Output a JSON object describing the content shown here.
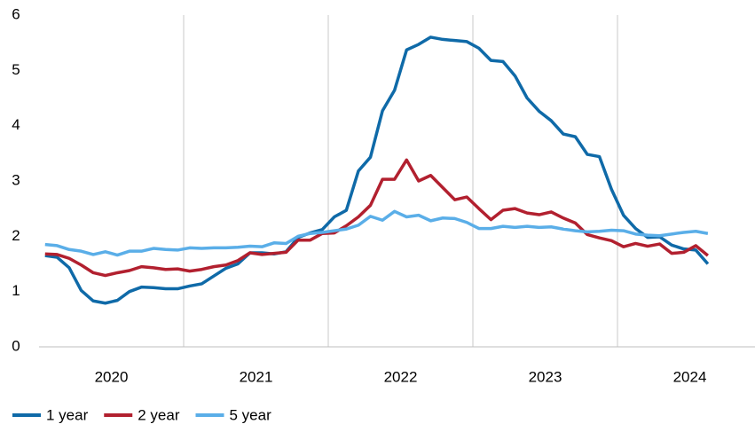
{
  "chart_data": {
    "type": "line",
    "categories": [
      null,
      null,
      null,
      null,
      null,
      null,
      "2020",
      null,
      null,
      null,
      null,
      null,
      null,
      null,
      null,
      null,
      null,
      null,
      "2021",
      null,
      null,
      null,
      null,
      null,
      null,
      null,
      null,
      null,
      null,
      null,
      "2022",
      null,
      null,
      null,
      null,
      null,
      null,
      null,
      null,
      null,
      null,
      null,
      "2023",
      null,
      null,
      null,
      null,
      null,
      null,
      null,
      null,
      null,
      null,
      null,
      "2024",
      null
    ],
    "series": [
      {
        "name": "1 year",
        "color": "#0f6aa8",
        "values": [
          1.65,
          1.62,
          1.43,
          1.02,
          0.83,
          0.79,
          0.84,
          1.0,
          1.08,
          1.07,
          1.05,
          1.05,
          1.1,
          1.14,
          1.28,
          1.42,
          1.5,
          1.7,
          1.7,
          1.68,
          1.72,
          1.98,
          2.06,
          2.12,
          2.35,
          2.47,
          3.18,
          3.43,
          4.27,
          4.64,
          5.37,
          5.47,
          5.6,
          5.56,
          5.54,
          5.52,
          5.4,
          5.18,
          5.16,
          4.9,
          4.5,
          4.26,
          4.09,
          3.85,
          3.8,
          3.48,
          3.44,
          2.85,
          2.38,
          2.14,
          1.98,
          1.99,
          1.84,
          1.77,
          1.75,
          1.5
        ]
      },
      {
        "name": "2 year",
        "color": "#b2202f",
        "values": [
          1.68,
          1.67,
          1.6,
          1.48,
          1.34,
          1.29,
          1.34,
          1.38,
          1.45,
          1.43,
          1.4,
          1.41,
          1.37,
          1.4,
          1.45,
          1.48,
          1.56,
          1.7,
          1.67,
          1.69,
          1.71,
          1.93,
          1.93,
          2.05,
          2.06,
          2.19,
          2.35,
          2.56,
          3.03,
          3.03,
          3.38,
          3.0,
          3.1,
          2.88,
          2.66,
          2.71,
          2.5,
          2.3,
          2.47,
          2.5,
          2.42,
          2.39,
          2.44,
          2.33,
          2.24,
          2.03,
          1.97,
          1.92,
          1.81,
          1.87,
          1.82,
          1.86,
          1.69,
          1.71,
          1.83,
          1.65
        ]
      },
      {
        "name": "5 year",
        "color": "#5aaee8",
        "values": [
          1.85,
          1.83,
          1.76,
          1.73,
          1.67,
          1.72,
          1.66,
          1.73,
          1.73,
          1.78,
          1.76,
          1.75,
          1.79,
          1.78,
          1.79,
          1.79,
          1.8,
          1.82,
          1.81,
          1.88,
          1.87,
          2.0,
          2.05,
          2.07,
          2.1,
          2.13,
          2.2,
          2.36,
          2.29,
          2.45,
          2.35,
          2.38,
          2.28,
          2.33,
          2.32,
          2.25,
          2.14,
          2.14,
          2.18,
          2.16,
          2.18,
          2.16,
          2.17,
          2.13,
          2.1,
          2.08,
          2.09,
          2.11,
          2.1,
          2.04,
          2.02,
          2.01,
          2.04,
          2.07,
          2.09,
          2.05
        ]
      }
    ],
    "ylim": [
      0,
      6
    ],
    "yticks": [
      0,
      1,
      2,
      3,
      4,
      5,
      6
    ]
  }
}
